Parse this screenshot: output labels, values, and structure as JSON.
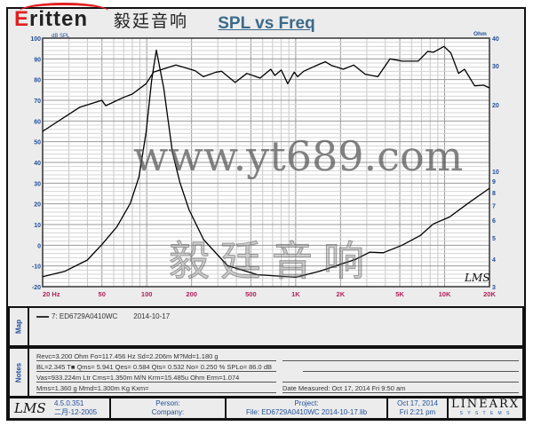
{
  "logo": {
    "word_initial": "E",
    "word_rest": "ritten",
    "chinese": "毅廷音响"
  },
  "chart_data": {
    "type": "line",
    "title": "SPL vs Freq",
    "xscale": "log",
    "xlim": [
      20,
      20000
    ],
    "x_ticks": [
      "20  Hz",
      "50",
      "100",
      "200",
      "500",
      "1K",
      "2K",
      "5K",
      "10K",
      "20K"
    ],
    "ylabel": "dB SPL",
    "ylim": [
      -20,
      100
    ],
    "y_ticks": [
      "100",
      "90",
      "80",
      "70",
      "60",
      "50",
      "40",
      "30",
      "20",
      "10",
      "0",
      "-10",
      "-20"
    ],
    "y2label": "Ohm",
    "y2scale": "log",
    "y2lim": [
      3,
      40
    ],
    "y2_ticks": [
      "40",
      "30",
      "20",
      "10",
      "9",
      "8",
      "7",
      "6",
      "5",
      "4",
      "3"
    ],
    "grid": true,
    "series": [
      {
        "axis": "left",
        "points": [
          [
            20,
            55
          ],
          [
            35.4,
            66.6
          ],
          [
            50,
            70
          ],
          [
            53,
            67.4
          ],
          [
            70,
            71.4
          ],
          [
            80,
            73
          ],
          [
            99,
            78
          ],
          [
            111,
            83.6
          ],
          [
            157,
            87
          ],
          [
            211,
            84.3
          ],
          [
            240,
            81.4
          ],
          [
            292,
            83.6
          ],
          [
            318,
            84
          ],
          [
            392,
            78.6
          ],
          [
            470,
            83
          ],
          [
            577,
            80.7
          ],
          [
            680,
            85
          ],
          [
            725,
            82
          ],
          [
            800,
            84.6
          ],
          [
            884,
            78
          ],
          [
            977,
            83.6
          ],
          [
            1030,
            81.4
          ],
          [
            1130,
            84
          ],
          [
            1440,
            87.4
          ],
          [
            1580,
            88.6
          ],
          [
            1730,
            86.9
          ],
          [
            2090,
            85
          ],
          [
            2450,
            87
          ],
          [
            2930,
            82.6
          ],
          [
            3560,
            81.4
          ],
          [
            4300,
            90
          ],
          [
            5180,
            88.9
          ],
          [
            6640,
            88.9
          ],
          [
            7700,
            93.6
          ],
          [
            8400,
            93.2
          ],
          [
            9900,
            96
          ],
          [
            11000,
            92.9
          ],
          [
            12400,
            83
          ],
          [
            13600,
            85
          ],
          [
            15900,
            77
          ],
          [
            18300,
            77.3
          ],
          [
            20000,
            76
          ]
        ]
      },
      {
        "axis": "right",
        "points": [
          [
            20,
            3.33
          ],
          [
            28.2,
            3.52
          ],
          [
            39.9,
            3.96
          ],
          [
            50,
            4.65
          ],
          [
            63,
            5.6
          ],
          [
            77.5,
            7.14
          ],
          [
            88.6,
            9.4
          ],
          [
            99,
            15
          ],
          [
            108,
            26
          ],
          [
            116,
            35.3
          ],
          [
            130,
            23.8
          ],
          [
            149,
            12.1
          ],
          [
            167,
            8.9
          ],
          [
            192,
            6.7
          ],
          [
            241,
            4.9
          ],
          [
            348,
            3.74
          ],
          [
            553,
            3.4
          ],
          [
            1000,
            3.31
          ],
          [
            1440,
            3.52
          ],
          [
            2510,
            3.98
          ],
          [
            3150,
            4.3
          ],
          [
            3870,
            4.27
          ],
          [
            5180,
            4.62
          ],
          [
            6830,
            5.1
          ],
          [
            8400,
            5.77
          ],
          [
            10800,
            6.2
          ],
          [
            14300,
            7.14
          ],
          [
            20000,
            8.37
          ]
        ]
      }
    ],
    "annotation": "LMS"
  },
  "map": {
    "label": "Map",
    "entry": "7: ED6729A0410WC",
    "date": "2014-10-17"
  },
  "notes": {
    "label": "Notes",
    "lines": [
      "Revc=3.200 Ohm  Fo=117.456 Hz  Sd=2.206m M?Md=1.180 g",
      "BL=2.345 T■  Qms= 5.941  Qes= 0.584  Qts= 0.532  No= 0.250 %  SPLo= 86.0 dB",
      "Vas=933.224m Ltr  Cms=1.350m M/N  Krm=15.485u Ohm  Erm=1.074",
      "Mms=1.360 g  Mmd=1.300m Kg  Kxm="
    ],
    "right_line": "Date Measured: Oct 17, 2014  Fri 9:50 am"
  },
  "footer": {
    "app": "LMS",
    "version": "4.5.0.351",
    "build_date": "二月-12-2005",
    "person_label": "Person:",
    "company_label": "Company:",
    "project_label": "Project:",
    "file": "File: ED6729A0410WC   2014-10-17.lib",
    "date": "Oct 17, 2014",
    "time": "Fri  2:21 pm",
    "brand": "LINEARX",
    "brand_sub": "S Y S T E M S"
  },
  "watermarks": {
    "plot": "毅廷音响",
    "site": "www.yt689.com"
  },
  "colors": {
    "title": "#3b6a8a",
    "axis_labels": "#1f4f9a",
    "x_labels": "#b0205a",
    "curve": "#000000",
    "logo_red": "#e02020"
  }
}
